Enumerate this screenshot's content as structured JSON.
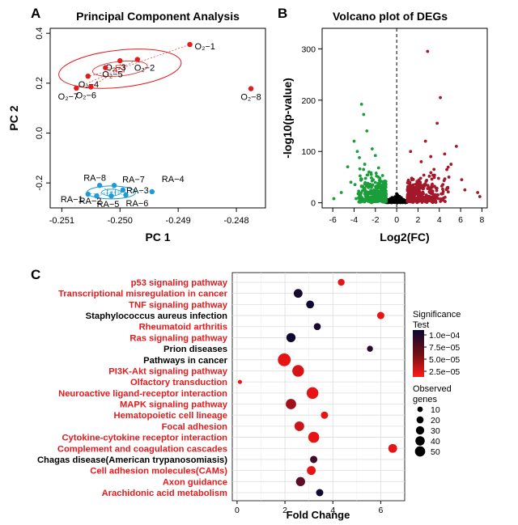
{
  "colors": {
    "red": "#e41a1c",
    "blue": "#1e9ad6",
    "green": "#1b9e3a",
    "darkred": "#a3182a",
    "axis": "#000000"
  },
  "chart_data": [
    {
      "panel": "A",
      "type": "scatter",
      "title": "Principal Component Analysis",
      "xlabel": "PC 1",
      "ylabel": "PC 2",
      "xlim": [
        -0.2512,
        -0.2475
      ],
      "ylim": [
        -0.3,
        0.42
      ],
      "xticks": [
        "-0.251",
        "-0.250",
        "-0.249",
        "-0.248"
      ],
      "xtick_values": [
        -0.251,
        -0.25,
        -0.249,
        -0.248
      ],
      "yticks": [
        "-0.2",
        "0.0",
        "0.2",
        "0.4"
      ],
      "ytick_values": [
        -0.2,
        0.0,
        0.2,
        0.4
      ],
      "series": [
        {
          "name": "O2",
          "color": "#e41a1c",
          "points": [
            {
              "label": "O₂−1",
              "x": -0.2488,
              "y": 0.355
            },
            {
              "label": "O₂−2",
              "x": -0.2497,
              "y": 0.295
            },
            {
              "label": "O₂−3",
              "x": -0.25,
              "y": 0.29
            },
            {
              "label": "O₂−4",
              "x": -0.25055,
              "y": 0.228
            },
            {
              "label": "O₂−5",
              "x": -0.25025,
              "y": 0.262
            },
            {
              "label": "O₂−6",
              "x": -0.2505,
              "y": 0.185
            },
            {
              "label": "O₂−7",
              "x": -0.25075,
              "y": 0.18
            },
            {
              "label": "O₂−8",
              "x": -0.24775,
              "y": 0.178
            }
          ]
        },
        {
          "name": "RA",
          "color": "#1e9ad6",
          "points": [
            {
              "label": "RA−1",
              "x": -0.25055,
              "y": -0.245
            },
            {
              "label": "RA−2",
              "x": -0.2504,
              "y": -0.252
            },
            {
              "label": "RA−3",
              "x": -0.24995,
              "y": -0.228
            },
            {
              "label": "RA−4",
              "x": -0.24945,
              "y": -0.235
            },
            {
              "label": "RA−5",
              "x": -0.25015,
              "y": -0.252
            },
            {
              "label": "RA−6",
              "x": -0.2499,
              "y": -0.248
            },
            {
              "label": "RA−7",
              "x": -0.2501,
              "y": -0.21
            },
            {
              "label": "RA−8",
              "x": -0.25035,
              "y": -0.21
            }
          ]
        }
      ]
    },
    {
      "panel": "B",
      "type": "scatter",
      "title": "Volcano plot of DEGs",
      "xlabel": "Log2(FC)",
      "ylabel": "-log10(p-value)",
      "xlim": [
        -7,
        8.5
      ],
      "ylim": [
        -10,
        340
      ],
      "xticks": [
        "-6",
        "-4",
        "-2",
        "0",
        "2",
        "4",
        "6",
        "8"
      ],
      "xtick_values": [
        -6,
        -4,
        -2,
        0,
        2,
        4,
        6,
        8
      ],
      "yticks": [
        "0",
        "100",
        "200",
        "300"
      ],
      "ytick_values": [
        0,
        100,
        200,
        300
      ],
      "vline": 0,
      "series": [
        {
          "name": "down",
          "color": "#1b9e3a"
        },
        {
          "name": "not significant",
          "color": "#000000"
        },
        {
          "name": "up",
          "color": "#a3182a"
        }
      ]
    },
    {
      "panel": "C",
      "type": "bubble",
      "xlabel": "Fold Change",
      "xlim": [
        -0.2,
        7.0
      ],
      "xticks": [
        "0",
        "2",
        "4",
        "6"
      ],
      "xtick_values": [
        0,
        2,
        4,
        6
      ],
      "legend_color": {
        "title": [
          "Significance",
          "Test"
        ],
        "labels": [
          "1.0e−04",
          "7.5e−05",
          "5.0e−05",
          "2.5e−05"
        ]
      },
      "legend_size": {
        "title": [
          "Observed",
          "genes"
        ],
        "labels": [
          "10",
          "20",
          "30",
          "40",
          "50"
        ],
        "values": [
          10,
          20,
          30,
          40,
          50
        ]
      },
      "pathways": [
        {
          "name": "p53 signaling pathway",
          "fc": 4.35,
          "genes": 10,
          "p": 2e-05,
          "highlight": true
        },
        {
          "name": "Transcriptional misregulation in cancer",
          "fc": 2.55,
          "genes": 20,
          "p": 9.5e-05,
          "highlight": true
        },
        {
          "name": "TNF signaling pathway",
          "fc": 3.05,
          "genes": 15,
          "p": 9.8e-05,
          "highlight": true
        },
        {
          "name": "Staphylococcus aureus infection",
          "fc": 6.0,
          "genes": 12,
          "p": 2e-05,
          "highlight": false
        },
        {
          "name": "Rheumatoid arthritis",
          "fc": 3.35,
          "genes": 11,
          "p": 9.5e-05,
          "highlight": true
        },
        {
          "name": "Ras signaling pathway",
          "fc": 2.25,
          "genes": 22,
          "p": 9.8e-05,
          "highlight": true
        },
        {
          "name": "Prion diseases",
          "fc": 5.55,
          "genes": 7,
          "p": 9e-05,
          "highlight": false
        },
        {
          "name": "Pathways in cancer",
          "fc": 1.97,
          "genes": 50,
          "p": 2e-05,
          "highlight": false
        },
        {
          "name": "PI3K-Akt signaling pathway",
          "fc": 2.55,
          "genes": 40,
          "p": 2.5e-05,
          "highlight": true
        },
        {
          "name": "Olfactory transduction",
          "fc": 0.12,
          "genes": 2,
          "p": 2e-05,
          "highlight": true
        },
        {
          "name": "Neuroactive ligand-receptor interaction",
          "fc": 3.15,
          "genes": 40,
          "p": 2e-05,
          "highlight": true
        },
        {
          "name": "MAPK signaling pathway",
          "fc": 2.25,
          "genes": 30,
          "p": 4.5e-05,
          "highlight": true
        },
        {
          "name": "Hematopoietic cell lineage",
          "fc": 3.65,
          "genes": 12,
          "p": 2e-05,
          "highlight": true
        },
        {
          "name": "Focal adhesion",
          "fc": 2.6,
          "genes": 25,
          "p": 3e-05,
          "highlight": true
        },
        {
          "name": "Cytokine-cytokine receptor interaction",
          "fc": 3.2,
          "genes": 35,
          "p": 2e-05,
          "highlight": true
        },
        {
          "name": "Complement and coagulation cascades",
          "fc": 6.5,
          "genes": 20,
          "p": 2e-05,
          "highlight": true
        },
        {
          "name": "Chagas disease(American trypanosomiasis)",
          "fc": 3.2,
          "genes": 12,
          "p": 8e-05,
          "highlight": false
        },
        {
          "name": "Cell adhesion molecules(CAMs)",
          "fc": 3.1,
          "genes": 20,
          "p": 2e-05,
          "highlight": true
        },
        {
          "name": "Axon guidance",
          "fc": 2.65,
          "genes": 22,
          "p": 7e-05,
          "highlight": true
        },
        {
          "name": "Arachidonic acid metabolism",
          "fc": 3.45,
          "genes": 12,
          "p": 9.8e-05,
          "highlight": true
        }
      ]
    }
  ],
  "panel_labels": {
    "a": "A",
    "b": "B",
    "c": "C"
  }
}
